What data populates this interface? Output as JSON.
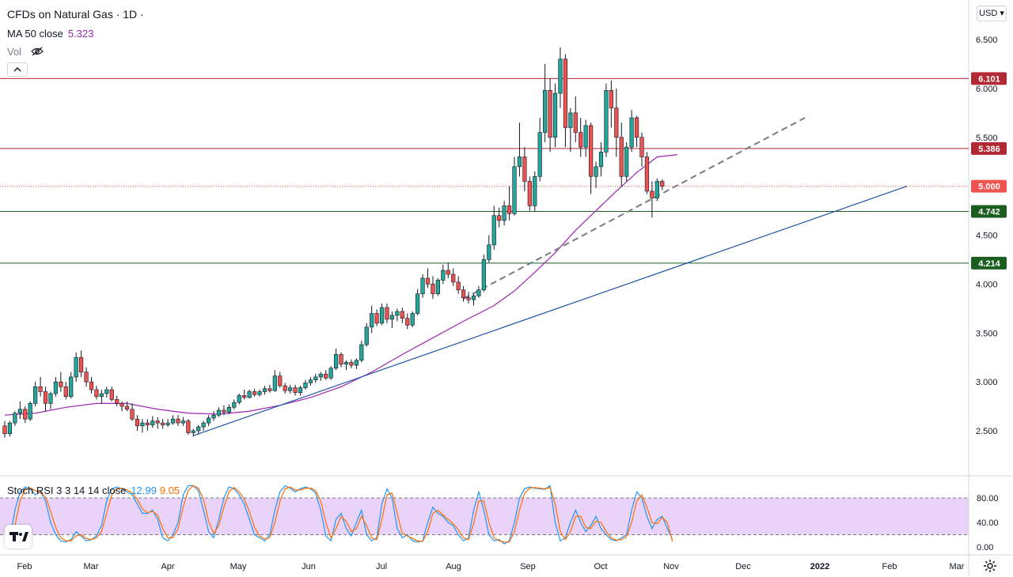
{
  "header": {
    "title": "CFDs on Natural Gas · 1D ·",
    "ma_label": "MA 50 close",
    "ma_value": "5.323",
    "vol_label": "Vol",
    "currency": "USD"
  },
  "stoch_panel": {
    "label": "Stoch RSI 3 3 14 14 close",
    "k_value": "12.99",
    "d_value": "9.05"
  },
  "colors": {
    "up": "#26a69a",
    "down": "#ef5350",
    "ma": "#9c27b0",
    "trend": "#1e53a6",
    "stoch_k": "#2196f3",
    "stoch_d": "#ff6d00",
    "stoch_band": "#e1c4f5",
    "level_red": "#b22833",
    "level_green": "#1b5e20",
    "current_price": "#ef5350"
  },
  "icons": {
    "eye": "eye-crossed-icon",
    "collapse": "chevron-up-icon",
    "logo": "tradingview-logo-icon",
    "settings": "gear-icon"
  },
  "chart_data": [
    {
      "type": "candlestick",
      "title": "CFDs on Natural Gas · 1D ·",
      "x_ticks": [
        "Feb",
        "Mar",
        "Apr",
        "May",
        "Jun",
        "Jul",
        "Aug",
        "Sep",
        "Oct",
        "Nov",
        "Dec",
        "2022",
        "Feb",
        "Mar"
      ],
      "y_ticks": [
        "2.500",
        "3.000",
        "3.500",
        "4.000",
        "4.500",
        "5.000",
        "5.500",
        "6.000",
        "6.500"
      ],
      "ylim": [
        2.28,
        6.82
      ],
      "price_levels": [
        {
          "label": "6.101",
          "value": 6.101,
          "color": "#b22833"
        },
        {
          "label": "5.386",
          "value": 5.386,
          "color": "#b22833"
        },
        {
          "label": "5.000",
          "value": 5.0,
          "color": "#ef5350",
          "style": "dotted",
          "current": true
        },
        {
          "label": "4.742",
          "value": 4.742,
          "color": "#1b5e20"
        },
        {
          "label": "4.214",
          "value": 4.214,
          "color": "#1b5e20"
        }
      ],
      "candles_ohlc": [
        [
          2.55,
          2.6,
          2.43,
          2.47
        ],
        [
          2.47,
          2.6,
          2.44,
          2.58
        ],
        [
          2.58,
          2.7,
          2.55,
          2.68
        ],
        [
          2.68,
          2.8,
          2.62,
          2.72
        ],
        [
          2.72,
          2.75,
          2.58,
          2.62
        ],
        [
          2.62,
          2.8,
          2.6,
          2.78
        ],
        [
          2.78,
          3.0,
          2.75,
          2.95
        ],
        [
          2.95,
          3.05,
          2.85,
          2.9
        ],
        [
          2.9,
          2.95,
          2.7,
          2.78
        ],
        [
          2.78,
          2.9,
          2.72,
          2.88
        ],
        [
          2.88,
          3.05,
          2.85,
          3.0
        ],
        [
          3.0,
          3.1,
          2.9,
          2.95
        ],
        [
          2.95,
          3.0,
          2.82,
          2.85
        ],
        [
          2.85,
          3.1,
          2.83,
          3.05
        ],
        [
          3.05,
          3.3,
          3.0,
          3.25
        ],
        [
          3.25,
          3.32,
          3.05,
          3.1
        ],
        [
          3.1,
          3.15,
          2.95,
          3.0
        ],
        [
          3.0,
          3.05,
          2.88,
          2.92
        ],
        [
          2.92,
          2.96,
          2.82,
          2.85
        ],
        [
          2.85,
          2.92,
          2.78,
          2.88
        ],
        [
          2.88,
          2.95,
          2.84,
          2.92
        ],
        [
          2.92,
          2.95,
          2.8,
          2.82
        ],
        [
          2.82,
          2.86,
          2.75,
          2.78
        ],
        [
          2.78,
          2.8,
          2.7,
          2.75
        ],
        [
          2.75,
          2.8,
          2.7,
          2.72
        ],
        [
          2.72,
          2.78,
          2.6,
          2.62
        ],
        [
          2.62,
          2.66,
          2.5,
          2.55
        ],
        [
          2.55,
          2.62,
          2.48,
          2.58
        ],
        [
          2.58,
          2.62,
          2.5,
          2.56
        ],
        [
          2.56,
          2.65,
          2.53,
          2.6
        ],
        [
          2.6,
          2.64,
          2.52,
          2.58
        ],
        [
          2.58,
          2.62,
          2.52,
          2.56
        ],
        [
          2.56,
          2.62,
          2.54,
          2.58
        ],
        [
          2.58,
          2.66,
          2.56,
          2.62
        ],
        [
          2.62,
          2.66,
          2.55,
          2.58
        ],
        [
          2.58,
          2.64,
          2.55,
          2.6
        ],
        [
          2.6,
          2.62,
          2.46,
          2.48
        ],
        [
          2.48,
          2.52,
          2.44,
          2.5
        ],
        [
          2.5,
          2.56,
          2.47,
          2.54
        ],
        [
          2.54,
          2.6,
          2.5,
          2.58
        ],
        [
          2.58,
          2.66,
          2.55,
          2.63
        ],
        [
          2.63,
          2.7,
          2.6,
          2.66
        ],
        [
          2.66,
          2.74,
          2.64,
          2.71
        ],
        [
          2.71,
          2.76,
          2.66,
          2.69
        ],
        [
          2.69,
          2.77,
          2.67,
          2.74
        ],
        [
          2.74,
          2.82,
          2.72,
          2.79
        ],
        [
          2.79,
          2.88,
          2.77,
          2.86
        ],
        [
          2.86,
          2.92,
          2.82,
          2.84
        ],
        [
          2.84,
          2.92,
          2.83,
          2.9
        ],
        [
          2.9,
          2.93,
          2.85,
          2.87
        ],
        [
          2.87,
          2.92,
          2.85,
          2.9
        ],
        [
          2.9,
          2.96,
          2.87,
          2.93
        ],
        [
          2.93,
          2.97,
          2.89,
          2.91
        ],
        [
          2.91,
          3.12,
          2.9,
          3.06
        ],
        [
          3.06,
          3.1,
          2.94,
          2.96
        ],
        [
          2.96,
          2.99,
          2.88,
          2.91
        ],
        [
          2.91,
          2.97,
          2.88,
          2.94
        ],
        [
          2.94,
          2.97,
          2.86,
          2.89
        ],
        [
          2.89,
          2.96,
          2.86,
          2.94
        ],
        [
          2.94,
          3.02,
          2.92,
          2.99
        ],
        [
          2.99,
          3.05,
          2.96,
          3.02
        ],
        [
          3.02,
          3.08,
          2.99,
          3.05
        ],
        [
          3.05,
          3.1,
          3.01,
          3.08
        ],
        [
          3.08,
          3.12,
          3.02,
          3.04
        ],
        [
          3.04,
          3.16,
          3.02,
          3.14
        ],
        [
          3.14,
          3.34,
          3.12,
          3.28
        ],
        [
          3.28,
          3.3,
          3.15,
          3.18
        ],
        [
          3.18,
          3.22,
          3.12,
          3.2
        ],
        [
          3.2,
          3.23,
          3.14,
          3.17
        ],
        [
          3.17,
          3.24,
          3.13,
          3.22
        ],
        [
          3.22,
          3.42,
          3.2,
          3.38
        ],
        [
          3.38,
          3.6,
          3.36,
          3.56
        ],
        [
          3.56,
          3.78,
          3.5,
          3.7
        ],
        [
          3.7,
          3.74,
          3.57,
          3.6
        ],
        [
          3.6,
          3.8,
          3.58,
          3.76
        ],
        [
          3.76,
          3.8,
          3.6,
          3.64
        ],
        [
          3.64,
          3.72,
          3.55,
          3.68
        ],
        [
          3.68,
          3.75,
          3.62,
          3.72
        ],
        [
          3.72,
          3.76,
          3.6,
          3.65
        ],
        [
          3.65,
          3.7,
          3.54,
          3.58
        ],
        [
          3.58,
          3.72,
          3.56,
          3.7
        ],
        [
          3.7,
          3.95,
          3.68,
          3.9
        ],
        [
          3.9,
          4.1,
          3.86,
          4.06
        ],
        [
          4.06,
          4.16,
          3.96,
          4.0
        ],
        [
          4.0,
          4.08,
          3.85,
          3.9
        ],
        [
          3.9,
          4.06,
          3.88,
          4.04
        ],
        [
          4.04,
          4.2,
          4.0,
          4.14
        ],
        [
          4.14,
          4.22,
          4.06,
          4.1
        ],
        [
          4.1,
          4.16,
          3.98,
          4.02
        ],
        [
          4.02,
          4.08,
          3.9,
          3.94
        ],
        [
          3.94,
          3.98,
          3.82,
          3.86
        ],
        [
          3.86,
          3.92,
          3.8,
          3.84
        ],
        [
          3.84,
          3.9,
          3.78,
          3.88
        ],
        [
          3.88,
          3.98,
          3.86,
          3.94
        ],
        [
          3.94,
          4.3,
          3.92,
          4.25
        ],
        [
          4.25,
          4.5,
          4.22,
          4.4
        ],
        [
          4.4,
          4.8,
          4.35,
          4.7
        ],
        [
          4.7,
          4.78,
          4.58,
          4.65
        ],
        [
          4.65,
          4.85,
          4.6,
          4.8
        ],
        [
          4.8,
          5.0,
          4.65,
          4.72
        ],
        [
          4.72,
          5.3,
          4.7,
          5.2
        ],
        [
          5.2,
          5.65,
          5.1,
          5.3
        ],
        [
          5.3,
          5.4,
          4.95,
          5.05
        ],
        [
          5.05,
          5.1,
          4.75,
          4.8
        ],
        [
          4.8,
          5.15,
          4.74,
          5.1
        ],
        [
          5.1,
          5.7,
          5.05,
          5.55
        ],
        [
          5.55,
          6.25,
          5.45,
          5.98
        ],
        [
          5.98,
          6.1,
          5.35,
          5.5
        ],
        [
          5.5,
          6.05,
          5.4,
          5.95
        ],
        [
          5.95,
          6.42,
          5.8,
          6.3
        ],
        [
          6.3,
          6.35,
          5.4,
          5.6
        ],
        [
          5.6,
          5.8,
          5.35,
          5.75
        ],
        [
          5.75,
          5.92,
          5.45,
          5.55
        ],
        [
          5.55,
          5.7,
          5.3,
          5.4
        ],
        [
          5.4,
          5.68,
          5.3,
          5.62
        ],
        [
          5.62,
          5.65,
          4.92,
          5.1
        ],
        [
          5.1,
          5.25,
          4.98,
          5.2
        ],
        [
          5.2,
          5.45,
          5.1,
          5.35
        ],
        [
          5.35,
          6.05,
          5.3,
          5.98
        ],
        [
          5.98,
          6.08,
          5.6,
          5.8
        ],
        [
          5.8,
          6.0,
          5.3,
          5.5
        ],
        [
          5.5,
          5.65,
          5.0,
          5.1
        ],
        [
          5.1,
          5.45,
          5.05,
          5.4
        ],
        [
          5.4,
          5.78,
          5.35,
          5.7
        ],
        [
          5.7,
          5.72,
          5.4,
          5.5
        ],
        [
          5.5,
          5.55,
          5.2,
          5.3
        ],
        [
          5.3,
          5.35,
          4.92,
          4.95
        ],
        [
          4.95,
          5.05,
          4.68,
          4.88
        ],
        [
          4.88,
          5.08,
          4.85,
          5.05
        ],
        [
          5.05,
          5.07,
          4.96,
          5.0
        ]
      ],
      "ma50": [
        [
          0,
          2.66
        ],
        [
          6,
          2.68
        ],
        [
          12,
          2.74
        ],
        [
          18,
          2.78
        ],
        [
          24,
          2.78
        ],
        [
          30,
          2.72
        ],
        [
          36,
          2.68
        ],
        [
          42,
          2.67
        ],
        [
          48,
          2.7
        ],
        [
          54,
          2.76
        ],
        [
          60,
          2.84
        ],
        [
          66,
          2.95
        ],
        [
          72,
          3.1
        ],
        [
          78,
          3.28
        ],
        [
          84,
          3.45
        ],
        [
          90,
          3.62
        ],
        [
          96,
          3.78
        ],
        [
          100,
          3.93
        ],
        [
          104,
          4.12
        ],
        [
          108,
          4.32
        ],
        [
          112,
          4.55
        ],
        [
          116,
          4.75
        ],
        [
          120,
          4.95
        ],
        [
          124,
          5.14
        ],
        [
          128,
          5.3
        ],
        [
          132,
          5.323
        ]
      ],
      "trendlines": [
        {
          "name": "support",
          "style": "solid",
          "from": [
            37,
            2.45
          ],
          "to": [
            177,
            5.0
          ]
        },
        {
          "name": "dashed",
          "style": "dashed",
          "from": [
            90,
            3.85
          ],
          "to": [
            157,
            5.7
          ]
        }
      ]
    },
    {
      "type": "line",
      "title": "Stoch RSI 3 3 14 14 close",
      "y_ticks": [
        "80.00",
        "40.00",
        "0.00"
      ],
      "ylim": [
        -5,
        103
      ],
      "band": [
        20,
        80
      ],
      "series": [
        {
          "name": "K",
          "color": "#2196f3",
          "values": [
            8,
            12,
            60,
            90,
            98,
            95,
            85,
            90,
            75,
            40,
            20,
            10,
            8,
            12,
            25,
            18,
            10,
            12,
            18,
            35,
            75,
            95,
            98,
            95,
            90,
            85,
            70,
            55,
            55,
            60,
            45,
            15,
            10,
            20,
            40,
            85,
            100,
            100,
            92,
            60,
            25,
            15,
            45,
            80,
            98,
            95,
            85,
            70,
            45,
            20,
            15,
            10,
            20,
            60,
            90,
            100,
            96,
            90,
            95,
            98,
            95,
            88,
            60,
            18,
            10,
            45,
            55,
            30,
            18,
            40,
            60,
            20,
            10,
            15,
            70,
            95,
            80,
            30,
            15,
            20,
            10,
            8,
            10,
            40,
            65,
            55,
            50,
            40,
            35,
            20,
            10,
            15,
            60,
            90,
            60,
            20,
            10,
            12,
            5,
            10,
            40,
            80,
            95,
            98,
            96,
            95,
            94,
            100,
            40,
            10,
            15,
            40,
            60,
            40,
            25,
            35,
            50,
            30,
            20,
            12,
            10,
            15,
            20,
            60,
            90,
            80,
            50,
            30,
            45,
            50,
            30,
            13
          ]
        },
        {
          "name": "D",
          "color": "#ff6d00",
          "values": [
            10,
            11,
            35,
            75,
            94,
            96,
            92,
            88,
            82,
            58,
            32,
            15,
            10,
            10,
            18,
            20,
            14,
            12,
            15,
            25,
            55,
            85,
            95,
            96,
            93,
            88,
            78,
            62,
            56,
            58,
            52,
            30,
            15,
            15,
            30,
            65,
            92,
            100,
            96,
            78,
            42,
            22,
            35,
            65,
            90,
            97,
            90,
            78,
            58,
            32,
            18,
            13,
            15,
            40,
            75,
            95,
            98,
            93,
            93,
            96,
            96,
            92,
            75,
            40,
            15,
            30,
            50,
            42,
            25,
            30,
            50,
            35,
            15,
            12,
            45,
            85,
            88,
            55,
            22,
            18,
            14,
            10,
            9,
            25,
            55,
            60,
            52,
            45,
            38,
            28,
            15,
            12,
            38,
            75,
            75,
            40,
            15,
            10,
            8,
            8,
            25,
            60,
            88,
            96,
            97,
            96,
            95,
            97,
            70,
            25,
            12,
            25,
            50,
            50,
            32,
            30,
            42,
            40,
            25,
            15,
            11,
            12,
            17,
            40,
            75,
            85,
            65,
            40,
            38,
            48,
            40,
            9
          ]
        }
      ]
    }
  ]
}
